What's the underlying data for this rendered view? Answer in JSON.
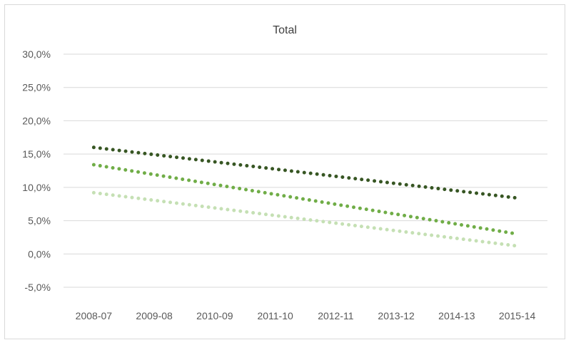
{
  "chart_data": {
    "type": "line",
    "title": "Total",
    "xlabel": "",
    "ylabel": "",
    "categories": [
      "2008-07",
      "2009-08",
      "2010-09",
      "2011-10",
      "2012-11",
      "2013-12",
      "2014-13",
      "2015-14"
    ],
    "y_ticks": [
      "30,0%",
      "25,0%",
      "20,0%",
      "15,0%",
      "10,0%",
      "5,0%",
      "0,0%",
      "-5,0%"
    ],
    "ylim": [
      -5,
      30
    ],
    "grid": true,
    "legend": "none",
    "series": [
      {
        "color": "#375623",
        "start": 16.0,
        "end": 8.4
      },
      {
        "color": "#70ad47",
        "start": 13.4,
        "end": 3.0
      },
      {
        "color": "#c5e0b4",
        "start": 9.2,
        "end": 1.2
      }
    ]
  }
}
